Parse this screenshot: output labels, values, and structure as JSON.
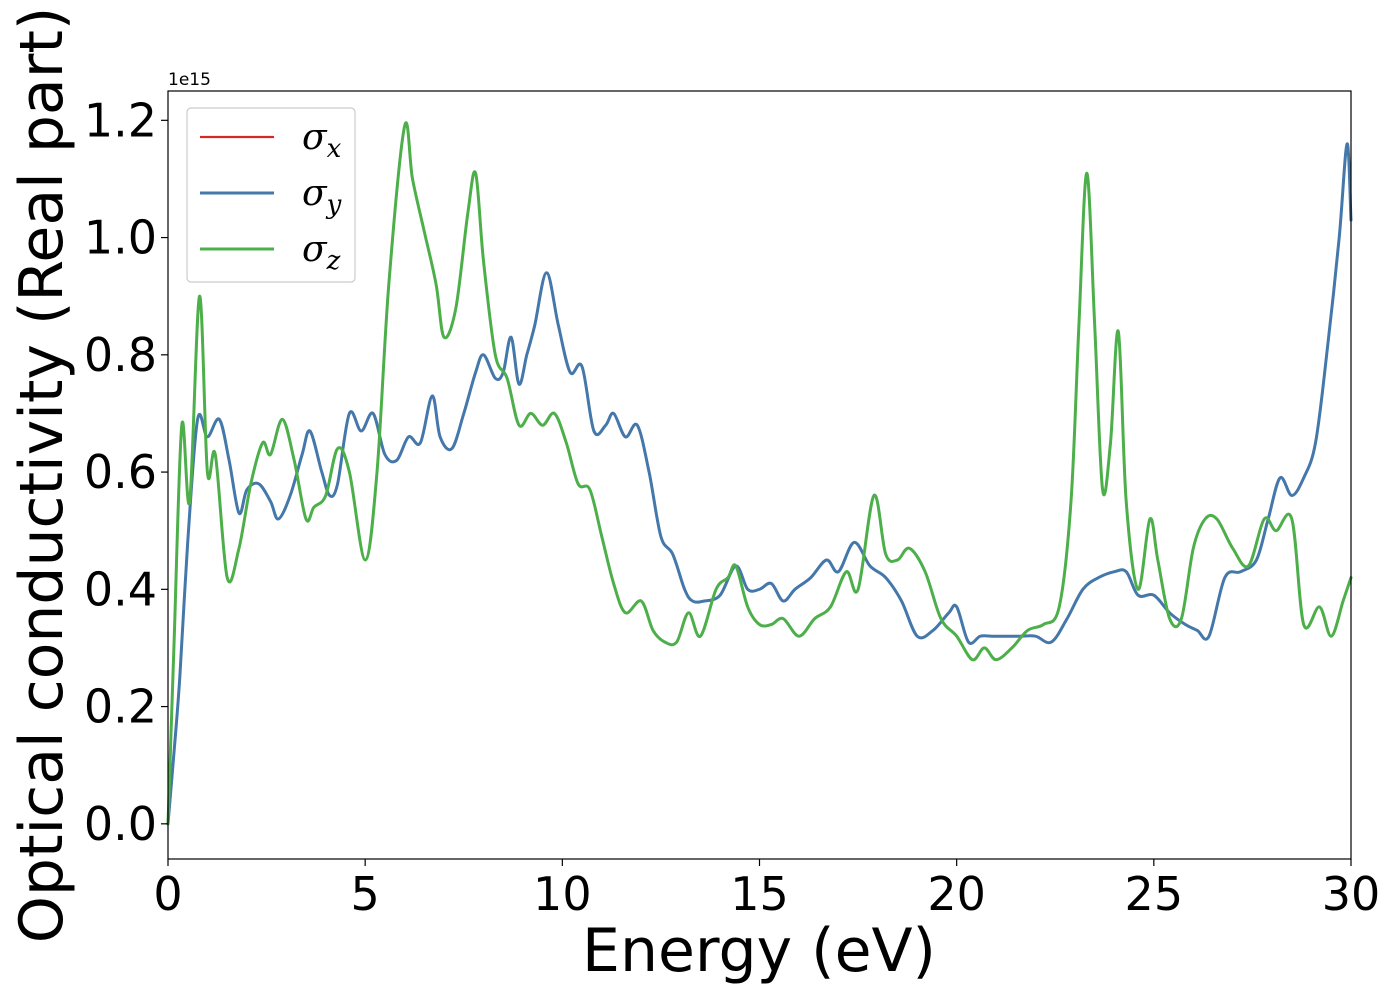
{
  "chart_data": {
    "type": "line",
    "title": "",
    "xlabel": "Energy (eV)",
    "ylabel": "Optical conductivity (Real part)",
    "y_offset_text": "1e15",
    "y_scale_factor": 1000000000000000.0,
    "xlim": [
      0,
      30
    ],
    "ylim": [
      -0.06,
      1.25
    ],
    "xticks": [
      0,
      5,
      10,
      15,
      20,
      25,
      30
    ],
    "xtick_labels": [
      "0",
      "5",
      "10",
      "15",
      "20",
      "25",
      "30"
    ],
    "yticks": [
      0.0,
      0.2,
      0.4,
      0.6,
      0.8,
      1.0,
      1.2
    ],
    "ytick_labels": [
      "0.0",
      "0.2",
      "0.4",
      "0.6",
      "0.8",
      "1.0",
      "1.2"
    ],
    "grid": false,
    "legend_position": "top-left",
    "series": [
      {
        "name": "σ",
        "subscript": "x",
        "color": "#d62728",
        "x": [
          0,
          0.15,
          0.3,
          0.5,
          0.75,
          1.0,
          1.3,
          1.55,
          1.8,
          2.0,
          2.3,
          2.6,
          2.8,
          3.1,
          3.4,
          3.6,
          3.9,
          4.1,
          4.3,
          4.6,
          4.9,
          5.2,
          5.5,
          5.8,
          6.1,
          6.4,
          6.7,
          6.9,
          7.2,
          7.5,
          7.8,
          8.0,
          8.3,
          8.5,
          8.7,
          8.9,
          9.1,
          9.3,
          9.6,
          9.9,
          10.2,
          10.5,
          10.8,
          11.1,
          11.3,
          11.6,
          11.9,
          12.2,
          12.5,
          12.8,
          13.1,
          13.3,
          13.6,
          14.0,
          14.4,
          14.7,
          15.0,
          15.3,
          15.6,
          15.9,
          16.3,
          16.7,
          17.0,
          17.4,
          17.8,
          18.2,
          18.6,
          19.0,
          19.4,
          19.8,
          20.0,
          20.3,
          20.6,
          20.9,
          21.2,
          21.6,
          22.0,
          22.4,
          22.8,
          23.2,
          23.6,
          24.0,
          24.3,
          24.6,
          25.0,
          25.4,
          25.8,
          26.1,
          26.4,
          26.8,
          27.2,
          27.6,
          27.9,
          28.2,
          28.5,
          28.8,
          29.1,
          29.4,
          29.7,
          29.9,
          30.0
        ],
        "y": [
          0.0,
          0.12,
          0.25,
          0.48,
          0.69,
          0.66,
          0.69,
          0.62,
          0.53,
          0.57,
          0.58,
          0.55,
          0.52,
          0.56,
          0.63,
          0.67,
          0.6,
          0.56,
          0.58,
          0.7,
          0.67,
          0.7,
          0.63,
          0.62,
          0.66,
          0.65,
          0.73,
          0.66,
          0.64,
          0.7,
          0.77,
          0.8,
          0.76,
          0.77,
          0.83,
          0.75,
          0.8,
          0.85,
          0.94,
          0.85,
          0.77,
          0.78,
          0.67,
          0.68,
          0.7,
          0.66,
          0.68,
          0.6,
          0.49,
          0.46,
          0.4,
          0.38,
          0.38,
          0.39,
          0.44,
          0.4,
          0.4,
          0.41,
          0.38,
          0.4,
          0.42,
          0.45,
          0.43,
          0.48,
          0.44,
          0.42,
          0.38,
          0.32,
          0.33,
          0.36,
          0.37,
          0.31,
          0.32,
          0.32,
          0.32,
          0.32,
          0.32,
          0.31,
          0.35,
          0.4,
          0.42,
          0.43,
          0.43,
          0.39,
          0.39,
          0.36,
          0.34,
          0.33,
          0.32,
          0.42,
          0.43,
          0.45,
          0.52,
          0.59,
          0.56,
          0.59,
          0.65,
          0.81,
          1.0,
          1.16,
          1.03
        ],
        "line_width": 2.2
      },
      {
        "name": "σ",
        "subscript": "y",
        "color": "#4477aa",
        "x": [
          0,
          0.15,
          0.3,
          0.5,
          0.75,
          1.0,
          1.3,
          1.55,
          1.8,
          2.0,
          2.3,
          2.6,
          2.8,
          3.1,
          3.4,
          3.6,
          3.9,
          4.1,
          4.3,
          4.6,
          4.9,
          5.2,
          5.5,
          5.8,
          6.1,
          6.4,
          6.7,
          6.9,
          7.2,
          7.5,
          7.8,
          8.0,
          8.3,
          8.5,
          8.7,
          8.9,
          9.1,
          9.3,
          9.6,
          9.9,
          10.2,
          10.5,
          10.8,
          11.1,
          11.3,
          11.6,
          11.9,
          12.2,
          12.5,
          12.8,
          13.1,
          13.3,
          13.6,
          14.0,
          14.4,
          14.7,
          15.0,
          15.3,
          15.6,
          15.9,
          16.3,
          16.7,
          17.0,
          17.4,
          17.8,
          18.2,
          18.6,
          19.0,
          19.4,
          19.8,
          20.0,
          20.3,
          20.6,
          20.9,
          21.2,
          21.6,
          22.0,
          22.4,
          22.8,
          23.2,
          23.6,
          24.0,
          24.3,
          24.6,
          25.0,
          25.4,
          25.8,
          26.1,
          26.4,
          26.8,
          27.2,
          27.6,
          27.9,
          28.2,
          28.5,
          28.8,
          29.1,
          29.4,
          29.7,
          29.9,
          30.0
        ],
        "y": [
          0.0,
          0.12,
          0.25,
          0.48,
          0.69,
          0.66,
          0.69,
          0.62,
          0.53,
          0.57,
          0.58,
          0.55,
          0.52,
          0.56,
          0.63,
          0.67,
          0.6,
          0.56,
          0.58,
          0.7,
          0.67,
          0.7,
          0.63,
          0.62,
          0.66,
          0.65,
          0.73,
          0.66,
          0.64,
          0.7,
          0.77,
          0.8,
          0.76,
          0.77,
          0.83,
          0.75,
          0.8,
          0.85,
          0.94,
          0.85,
          0.77,
          0.78,
          0.67,
          0.68,
          0.7,
          0.66,
          0.68,
          0.6,
          0.49,
          0.46,
          0.4,
          0.38,
          0.38,
          0.39,
          0.44,
          0.4,
          0.4,
          0.41,
          0.38,
          0.4,
          0.42,
          0.45,
          0.43,
          0.48,
          0.44,
          0.42,
          0.38,
          0.32,
          0.33,
          0.36,
          0.37,
          0.31,
          0.32,
          0.32,
          0.32,
          0.32,
          0.32,
          0.31,
          0.35,
          0.4,
          0.42,
          0.43,
          0.43,
          0.39,
          0.39,
          0.36,
          0.34,
          0.33,
          0.32,
          0.42,
          0.43,
          0.45,
          0.52,
          0.59,
          0.56,
          0.59,
          0.65,
          0.81,
          1.0,
          1.16,
          1.03
        ],
        "line_width": 3
      },
      {
        "name": "σ",
        "subscript": "z",
        "color": "#4daf4a",
        "x": [
          0,
          0.15,
          0.35,
          0.55,
          0.8,
          1.0,
          1.2,
          1.5,
          1.8,
          2.1,
          2.4,
          2.6,
          2.9,
          3.2,
          3.5,
          3.7,
          4.0,
          4.3,
          4.6,
          5.0,
          5.3,
          5.6,
          6.0,
          6.2,
          6.5,
          6.8,
          7.0,
          7.3,
          7.6,
          7.8,
          8.0,
          8.3,
          8.6,
          8.9,
          9.2,
          9.5,
          9.8,
          10.1,
          10.4,
          10.7,
          11.0,
          11.3,
          11.6,
          12.0,
          12.3,
          12.6,
          12.9,
          13.2,
          13.5,
          13.9,
          14.2,
          14.4,
          14.7,
          15.0,
          15.3,
          15.6,
          16.0,
          16.4,
          16.8,
          17.2,
          17.5,
          17.9,
          18.2,
          18.5,
          18.8,
          19.2,
          19.6,
          20.0,
          20.4,
          20.7,
          21.0,
          21.4,
          21.8,
          22.2,
          22.6,
          22.9,
          23.1,
          23.3,
          23.5,
          23.7,
          23.9,
          24.1,
          24.3,
          24.6,
          24.9,
          25.1,
          25.4,
          25.7,
          26.0,
          26.3,
          26.6,
          27.0,
          27.4,
          27.8,
          28.1,
          28.5,
          28.8,
          29.2,
          29.5,
          29.8,
          30.0
        ],
        "y": [
          0.0,
          0.3,
          0.68,
          0.55,
          0.9,
          0.6,
          0.63,
          0.42,
          0.47,
          0.58,
          0.65,
          0.63,
          0.69,
          0.62,
          0.52,
          0.54,
          0.56,
          0.64,
          0.6,
          0.45,
          0.6,
          0.92,
          1.19,
          1.1,
          1.01,
          0.92,
          0.83,
          0.88,
          1.04,
          1.11,
          0.96,
          0.8,
          0.76,
          0.68,
          0.7,
          0.68,
          0.7,
          0.65,
          0.58,
          0.57,
          0.49,
          0.41,
          0.36,
          0.38,
          0.33,
          0.31,
          0.31,
          0.36,
          0.32,
          0.4,
          0.42,
          0.44,
          0.37,
          0.34,
          0.34,
          0.35,
          0.32,
          0.35,
          0.37,
          0.43,
          0.4,
          0.56,
          0.46,
          0.45,
          0.47,
          0.43,
          0.35,
          0.32,
          0.28,
          0.3,
          0.28,
          0.3,
          0.33,
          0.34,
          0.37,
          0.55,
          0.85,
          1.11,
          0.85,
          0.57,
          0.65,
          0.84,
          0.55,
          0.4,
          0.52,
          0.45,
          0.35,
          0.35,
          0.47,
          0.52,
          0.52,
          0.47,
          0.44,
          0.52,
          0.5,
          0.52,
          0.34,
          0.37,
          0.32,
          0.38,
          0.42
        ],
        "line_width": 3
      }
    ]
  }
}
